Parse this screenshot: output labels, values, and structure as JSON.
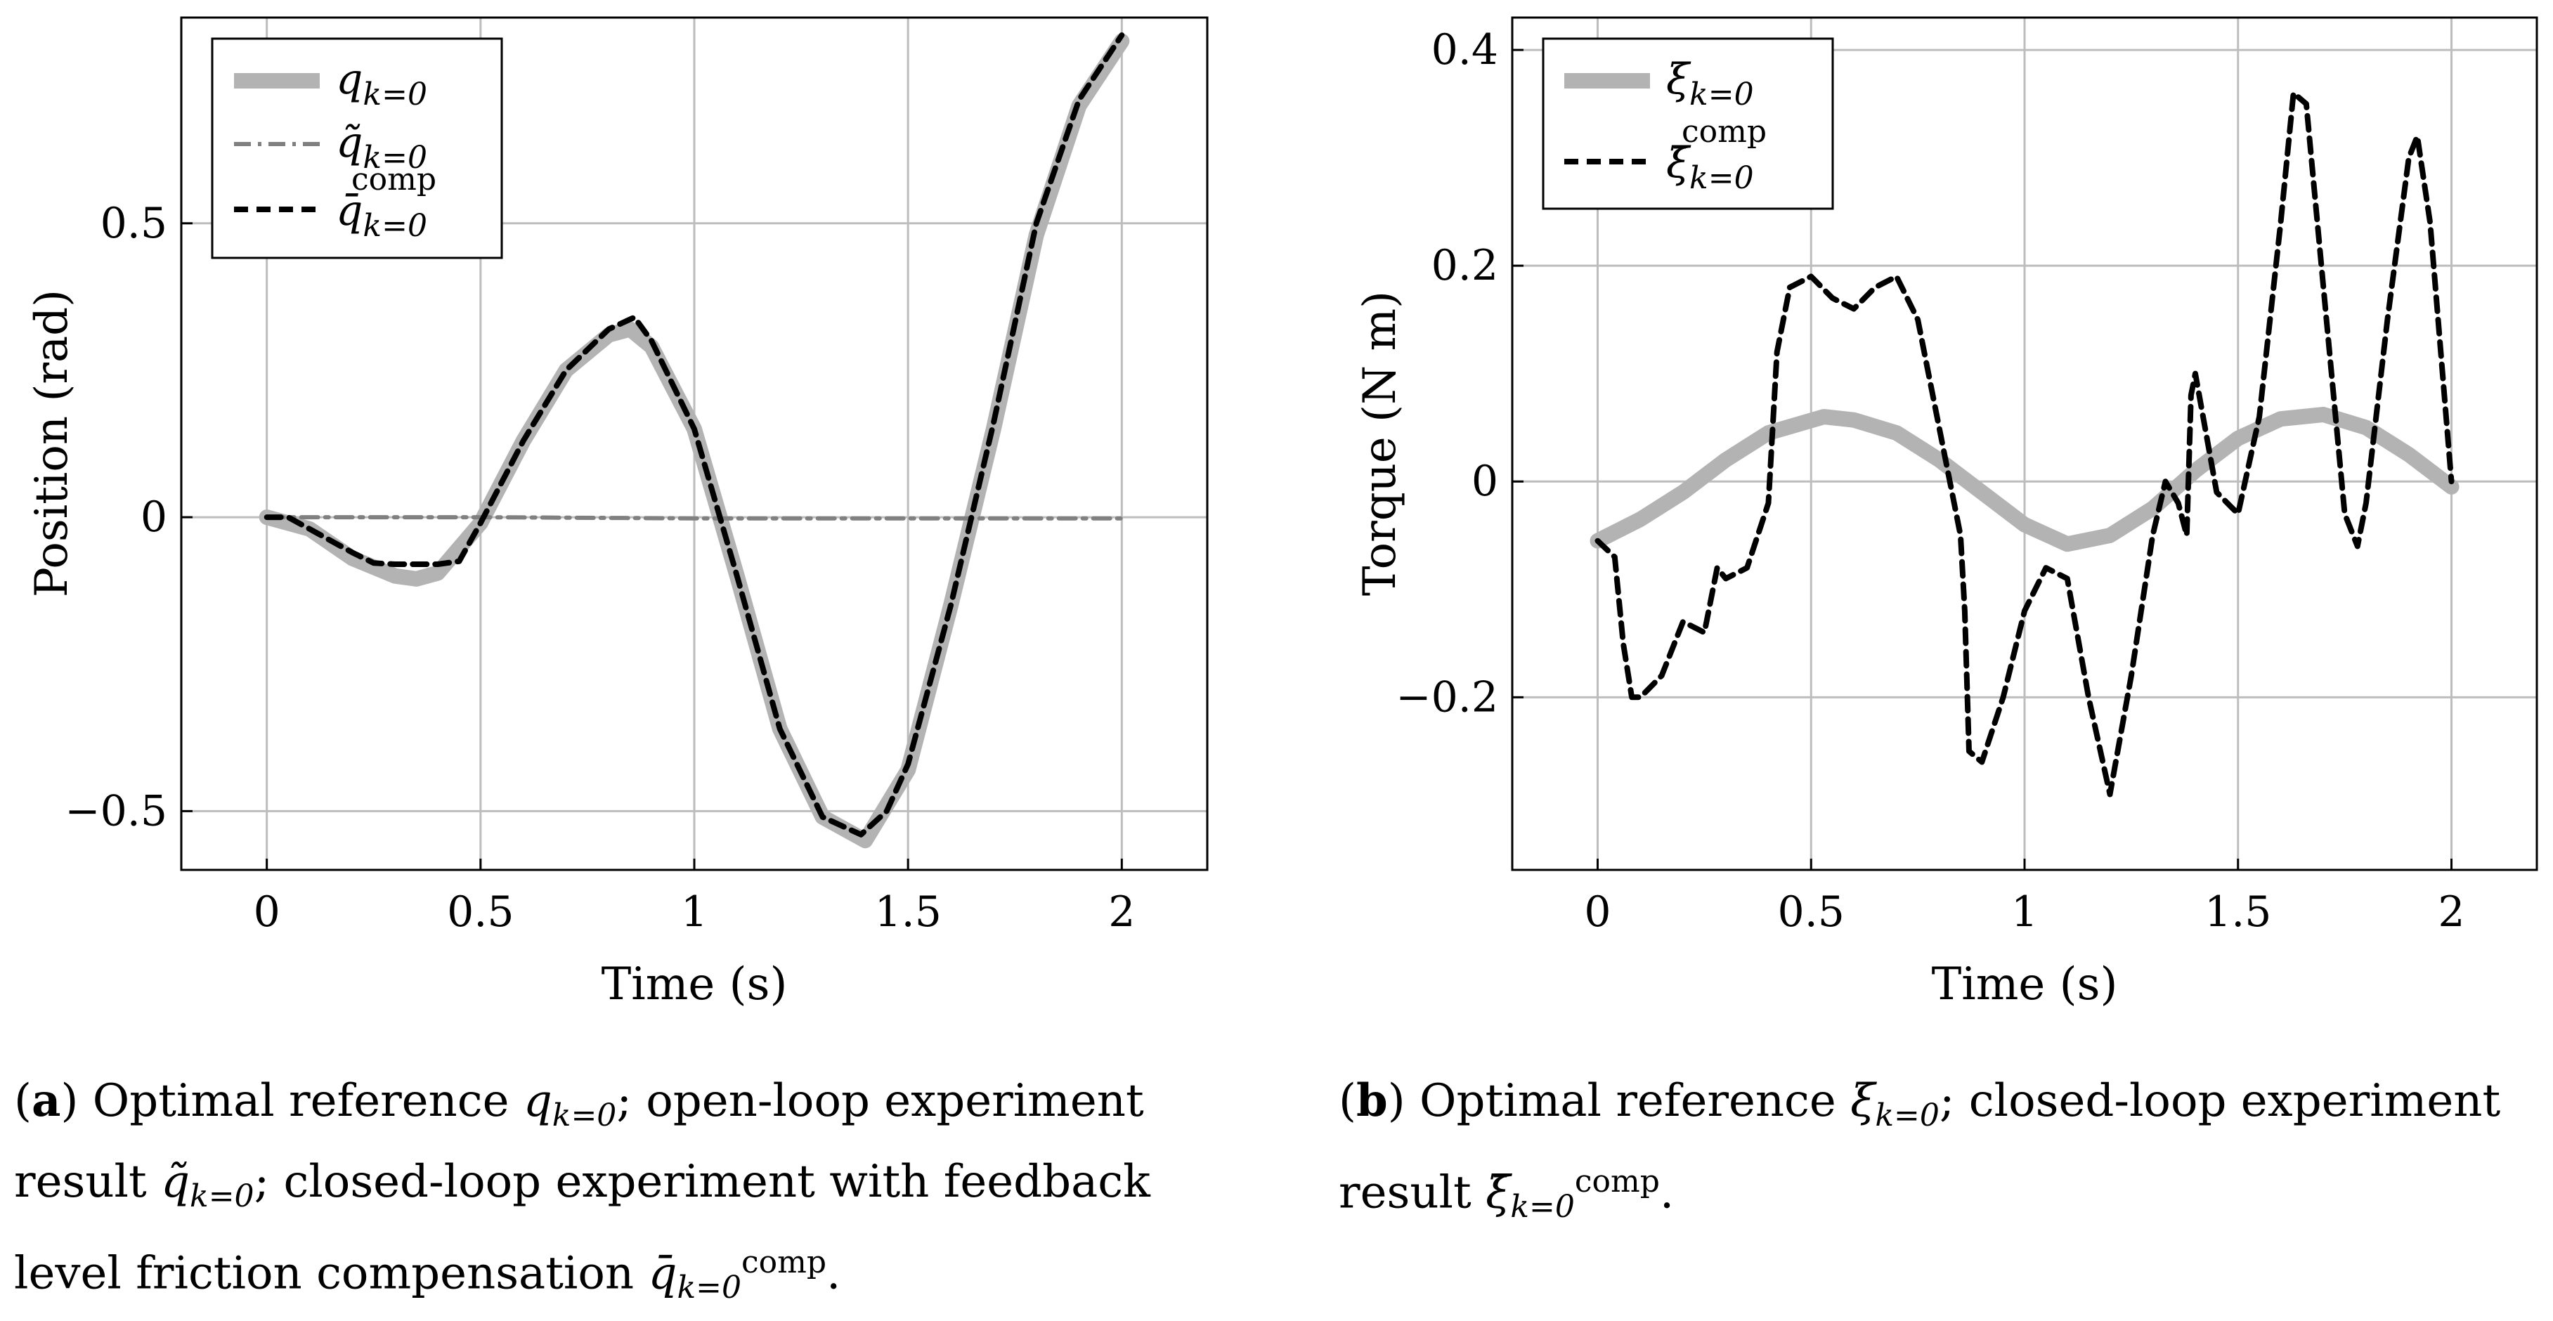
{
  "figure": {
    "panel_a": {
      "label": "a",
      "caption_lines": [
        "Optimal reference q_{k=0}; open-loop experiment",
        "result q̃_{k=0}; closed-loop experiment with feedback",
        "level friction compensation q̄^{comp}_{k=0}."
      ]
    },
    "panel_b": {
      "label": "b",
      "caption_lines": [
        "Optimal reference ξ_{k=0}; closed-loop experiment",
        "result ξ̄^{comp}_{k=0}."
      ]
    }
  },
  "colors": {
    "reference": "#b3b3b3",
    "openloop": "#808080",
    "closedloop": "#000000",
    "grid": "#bdbdbd"
  },
  "chart_data": [
    {
      "type": "line",
      "title": "",
      "xlabel": "Time (s)",
      "ylabel": "Position (rad)",
      "xlim": [
        -0.2,
        2.2
      ],
      "ylim": [
        -0.6,
        0.85
      ],
      "xticks": [
        0,
        0.5,
        1,
        1.5,
        2
      ],
      "xtick_labels": [
        "0",
        "0.5",
        "1",
        "1.5",
        "2"
      ],
      "yticks": [
        -0.5,
        0,
        0.5
      ],
      "ytick_labels": [
        "−0.5",
        "0",
        "0.5"
      ],
      "grid": true,
      "legend_position": "top-left",
      "series": [
        {
          "name": "q_{k=0}",
          "style": "thick-light-gray",
          "x": [
            0,
            0.1,
            0.2,
            0.3,
            0.35,
            0.4,
            0.5,
            0.6,
            0.7,
            0.8,
            0.85,
            0.9,
            1.0,
            1.1,
            1.2,
            1.3,
            1.4,
            1.5,
            1.6,
            1.7,
            1.8,
            1.9,
            2.0
          ],
          "y": [
            0,
            -0.02,
            -0.07,
            -0.1,
            -0.105,
            -0.095,
            -0.01,
            0.13,
            0.25,
            0.31,
            0.32,
            0.29,
            0.15,
            -0.1,
            -0.36,
            -0.51,
            -0.55,
            -0.43,
            -0.15,
            0.15,
            0.48,
            0.7,
            0.81
          ]
        },
        {
          "name": "q̃_{k=0}",
          "style": "dash-dot-gray",
          "x": [
            0,
            0.5,
            1.0,
            1.5,
            2.0
          ],
          "y": [
            0,
            0,
            -0.002,
            -0.002,
            -0.002
          ]
        },
        {
          "name": "q̄^{comp}_{k=0}",
          "style": "dashed-black",
          "x": [
            0,
            0.05,
            0.1,
            0.2,
            0.25,
            0.3,
            0.35,
            0.4,
            0.45,
            0.5,
            0.6,
            0.7,
            0.8,
            0.86,
            0.9,
            1.0,
            1.1,
            1.2,
            1.3,
            1.39,
            1.45,
            1.5,
            1.6,
            1.7,
            1.8,
            1.9,
            2.0
          ],
          "y": [
            0,
            0,
            -0.02,
            -0.06,
            -0.078,
            -0.08,
            -0.08,
            -0.08,
            -0.075,
            -0.01,
            0.13,
            0.25,
            0.32,
            0.34,
            0.3,
            0.15,
            -0.1,
            -0.36,
            -0.51,
            -0.54,
            -0.5,
            -0.42,
            -0.15,
            0.16,
            0.5,
            0.71,
            0.82
          ]
        }
      ]
    },
    {
      "type": "line",
      "title": "",
      "xlabel": "Time (s)",
      "ylabel": "Torque (N m)",
      "xlim": [
        -0.2,
        2.2
      ],
      "ylim": [
        -0.36,
        0.43
      ],
      "xticks": [
        0,
        0.5,
        1,
        1.5,
        2
      ],
      "xtick_labels": [
        "0",
        "0.5",
        "1",
        "1.5",
        "2"
      ],
      "yticks": [
        -0.2,
        0,
        0.2,
        0.4
      ],
      "ytick_labels": [
        "−0.2",
        "0",
        "0.2",
        "0.4"
      ],
      "grid": true,
      "legend_position": "top-left",
      "series": [
        {
          "name": "ξ_{k=0}",
          "style": "thick-light-gray",
          "x": [
            0,
            0.1,
            0.2,
            0.3,
            0.4,
            0.53,
            0.6,
            0.7,
            0.8,
            0.9,
            1.0,
            1.1,
            1.2,
            1.3,
            1.4,
            1.5,
            1.6,
            1.7,
            1.8,
            1.9,
            2.0
          ],
          "y": [
            -0.055,
            -0.035,
            -0.01,
            0.02,
            0.045,
            0.06,
            0.057,
            0.045,
            0.02,
            -0.01,
            -0.04,
            -0.058,
            -0.05,
            -0.025,
            0.01,
            0.04,
            0.058,
            0.062,
            0.05,
            0.025,
            -0.005
          ]
        },
        {
          "name": "ξ̄^{comp}_{k=0}",
          "style": "dashed-black",
          "x": [
            0,
            0.04,
            0.06,
            0.08,
            0.1,
            0.15,
            0.2,
            0.25,
            0.28,
            0.3,
            0.35,
            0.4,
            0.42,
            0.45,
            0.5,
            0.55,
            0.6,
            0.65,
            0.7,
            0.75,
            0.8,
            0.85,
            0.86,
            0.87,
            0.9,
            0.95,
            1.0,
            1.05,
            1.1,
            1.15,
            1.2,
            1.25,
            1.3,
            1.33,
            1.36,
            1.38,
            1.39,
            1.4,
            1.45,
            1.5,
            1.55,
            1.6,
            1.63,
            1.66,
            1.7,
            1.75,
            1.78,
            1.8,
            1.85,
            1.9,
            1.92,
            1.95,
            2.0
          ],
          "y": [
            -0.055,
            -0.07,
            -0.15,
            -0.2,
            -0.2,
            -0.18,
            -0.13,
            -0.14,
            -0.08,
            -0.09,
            -0.08,
            -0.02,
            0.12,
            0.18,
            0.19,
            0.17,
            0.16,
            0.18,
            0.19,
            0.15,
            0.05,
            -0.05,
            -0.12,
            -0.25,
            -0.26,
            -0.2,
            -0.12,
            -0.08,
            -0.09,
            -0.2,
            -0.29,
            -0.18,
            -0.05,
            0.0,
            -0.02,
            -0.05,
            0.08,
            0.1,
            -0.01,
            -0.03,
            0.06,
            0.24,
            0.36,
            0.35,
            0.18,
            -0.03,
            -0.06,
            -0.02,
            0.15,
            0.3,
            0.32,
            0.24,
            0.0
          ]
        }
      ]
    }
  ]
}
